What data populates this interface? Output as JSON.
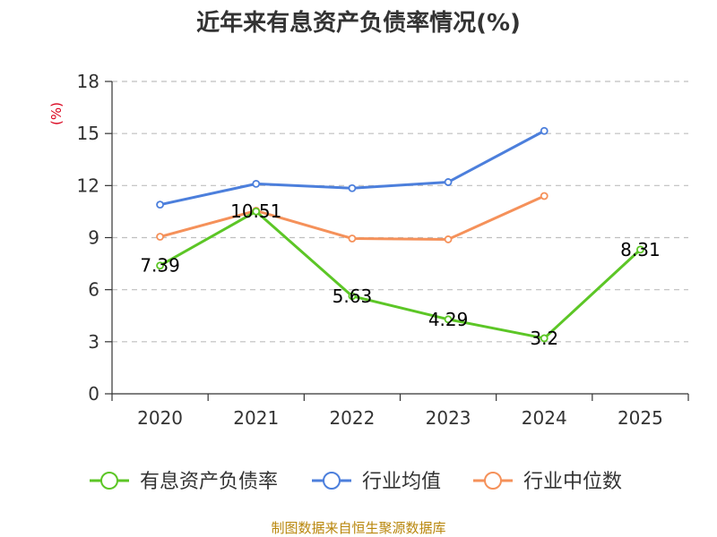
{
  "chart_data": {
    "type": "line",
    "title": "近年来有息资产负债率情况(%)",
    "unit_label": "(%)",
    "categories": [
      "2020",
      "2021",
      "2022",
      "2023",
      "2024",
      "2025"
    ],
    "ylim": [
      0,
      18
    ],
    "yticks": [
      "0",
      "3",
      "6",
      "9",
      "12",
      "15",
      "18"
    ],
    "grid": true,
    "legend_position": "bottom",
    "series": [
      {
        "name": "有息资产负债率",
        "color": "#5cc626",
        "values": [
          7.39,
          10.51,
          5.63,
          4.29,
          3.2,
          8.31
        ],
        "labels": [
          "7.39",
          "10.51",
          "5.63",
          "4.29",
          "3.2",
          "8.31"
        ]
      },
      {
        "name": "行业均值",
        "color": "#4c7fdc",
        "values": [
          10.9,
          12.1,
          11.85,
          12.2,
          15.15,
          null
        ]
      },
      {
        "name": "行业中位数",
        "color": "#f5915a",
        "values": [
          9.05,
          10.55,
          8.95,
          8.9,
          11.4,
          null
        ]
      }
    ],
    "source": "制图数据来自恒生聚源数据库"
  }
}
